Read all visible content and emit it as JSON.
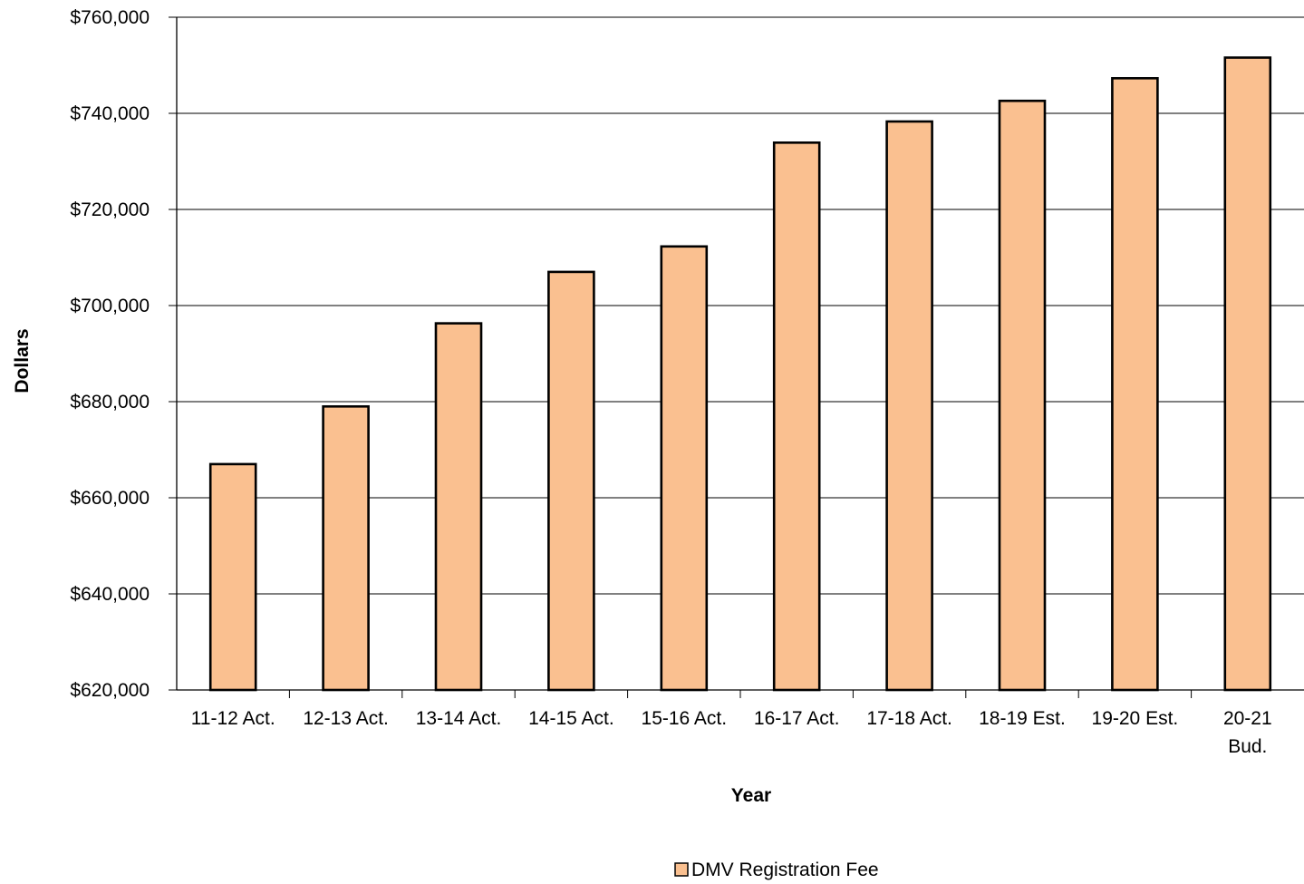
{
  "chart_data": {
    "type": "bar",
    "categories": [
      "11-12 Act.",
      "12-13 Act.",
      "13-14 Act.",
      "14-15 Act.",
      "15-16 Act.",
      "16-17 Act.",
      "17-18 Act.",
      "18-19 Est.",
      "19-20 Est.",
      "20-21 Bud."
    ],
    "category_label_lines": [
      [
        "11-12 Act."
      ],
      [
        "12-13 Act."
      ],
      [
        "13-14 Act."
      ],
      [
        "14-15 Act."
      ],
      [
        "15-16 Act."
      ],
      [
        "16-17 Act."
      ],
      [
        "17-18 Act."
      ],
      [
        "18-19 Est."
      ],
      [
        "19-20 Est."
      ],
      [
        "20-21",
        "Bud."
      ]
    ],
    "series": [
      {
        "name": "DMV Registration Fee",
        "values": [
          667000,
          679000,
          696300,
          707000,
          712300,
          733900,
          738300,
          742600,
          747300,
          751600
        ]
      }
    ],
    "title": "",
    "xlabel": "Year",
    "ylabel": "Dollars",
    "ylim": [
      620000,
      760000
    ],
    "yticks": [
      620000,
      640000,
      660000,
      680000,
      700000,
      720000,
      740000,
      760000
    ],
    "ytick_labels": [
      "$620,000",
      "$640,000",
      "$660,000",
      "$680,000",
      "$700,000",
      "$720,000",
      "$740,000",
      "$760,000"
    ],
    "grid": true,
    "legend_position": "bottom-center",
    "colors": {
      "bar_fill": "#FAC090",
      "bar_stroke": "#000000",
      "gridline": "#000000"
    }
  }
}
